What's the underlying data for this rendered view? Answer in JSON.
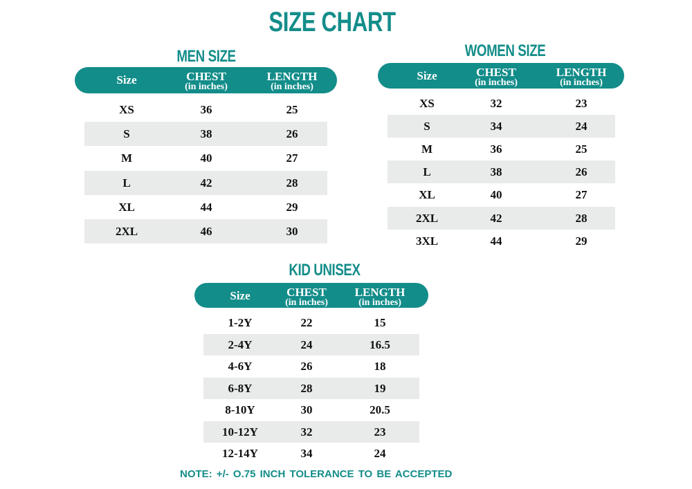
{
  "title": "SIZE CHART",
  "tables": [
    {
      "title": "MEN SIZE",
      "header": [
        {
          "label": "Size"
        },
        {
          "label": "CHEST",
          "sub": "(in inches)"
        },
        {
          "label": "LENGTH",
          "sub": "(in inches)"
        }
      ],
      "rows": [
        [
          "XS",
          "36",
          "25"
        ],
        [
          "S",
          "38",
          "26"
        ],
        [
          "M",
          "40",
          "27"
        ],
        [
          "L",
          "42",
          "28"
        ],
        [
          "XL",
          "44",
          "29"
        ],
        [
          "2XL",
          "46",
          "30"
        ]
      ]
    },
    {
      "title": "WOMEN SIZE",
      "header": [
        {
          "label": "Size"
        },
        {
          "label": "CHEST",
          "sub": "(in inches)"
        },
        {
          "label": "LENGTH",
          "sub": "(in inches)"
        }
      ],
      "rows": [
        [
          "XS",
          "32",
          "23"
        ],
        [
          "S",
          "34",
          "24"
        ],
        [
          "M",
          "36",
          "25"
        ],
        [
          "L",
          "38",
          "26"
        ],
        [
          "XL",
          "40",
          "27"
        ],
        [
          "2XL",
          "42",
          "28"
        ],
        [
          "3XL",
          "44",
          "29"
        ]
      ]
    },
    {
      "title": "KID UNISEX",
      "header": [
        {
          "label": "Size"
        },
        {
          "label": "CHEST",
          "sub": "(in inches)"
        },
        {
          "label": "LENGTH",
          "sub": "(in inches)"
        }
      ],
      "rows": [
        [
          "1-2Y",
          "22",
          "15"
        ],
        [
          "2-4Y",
          "24",
          "16.5"
        ],
        [
          "4-6Y",
          "26",
          "18"
        ],
        [
          "6-8Y",
          "28",
          "19"
        ],
        [
          "8-10Y",
          "30",
          "20.5"
        ],
        [
          "10-12Y",
          "32",
          "23"
        ],
        [
          "12-14Y",
          "34",
          "24"
        ]
      ]
    }
  ],
  "note": "NOTE: +/- O.75 INCH TOLERANCE TO BE ACCEPTED"
}
